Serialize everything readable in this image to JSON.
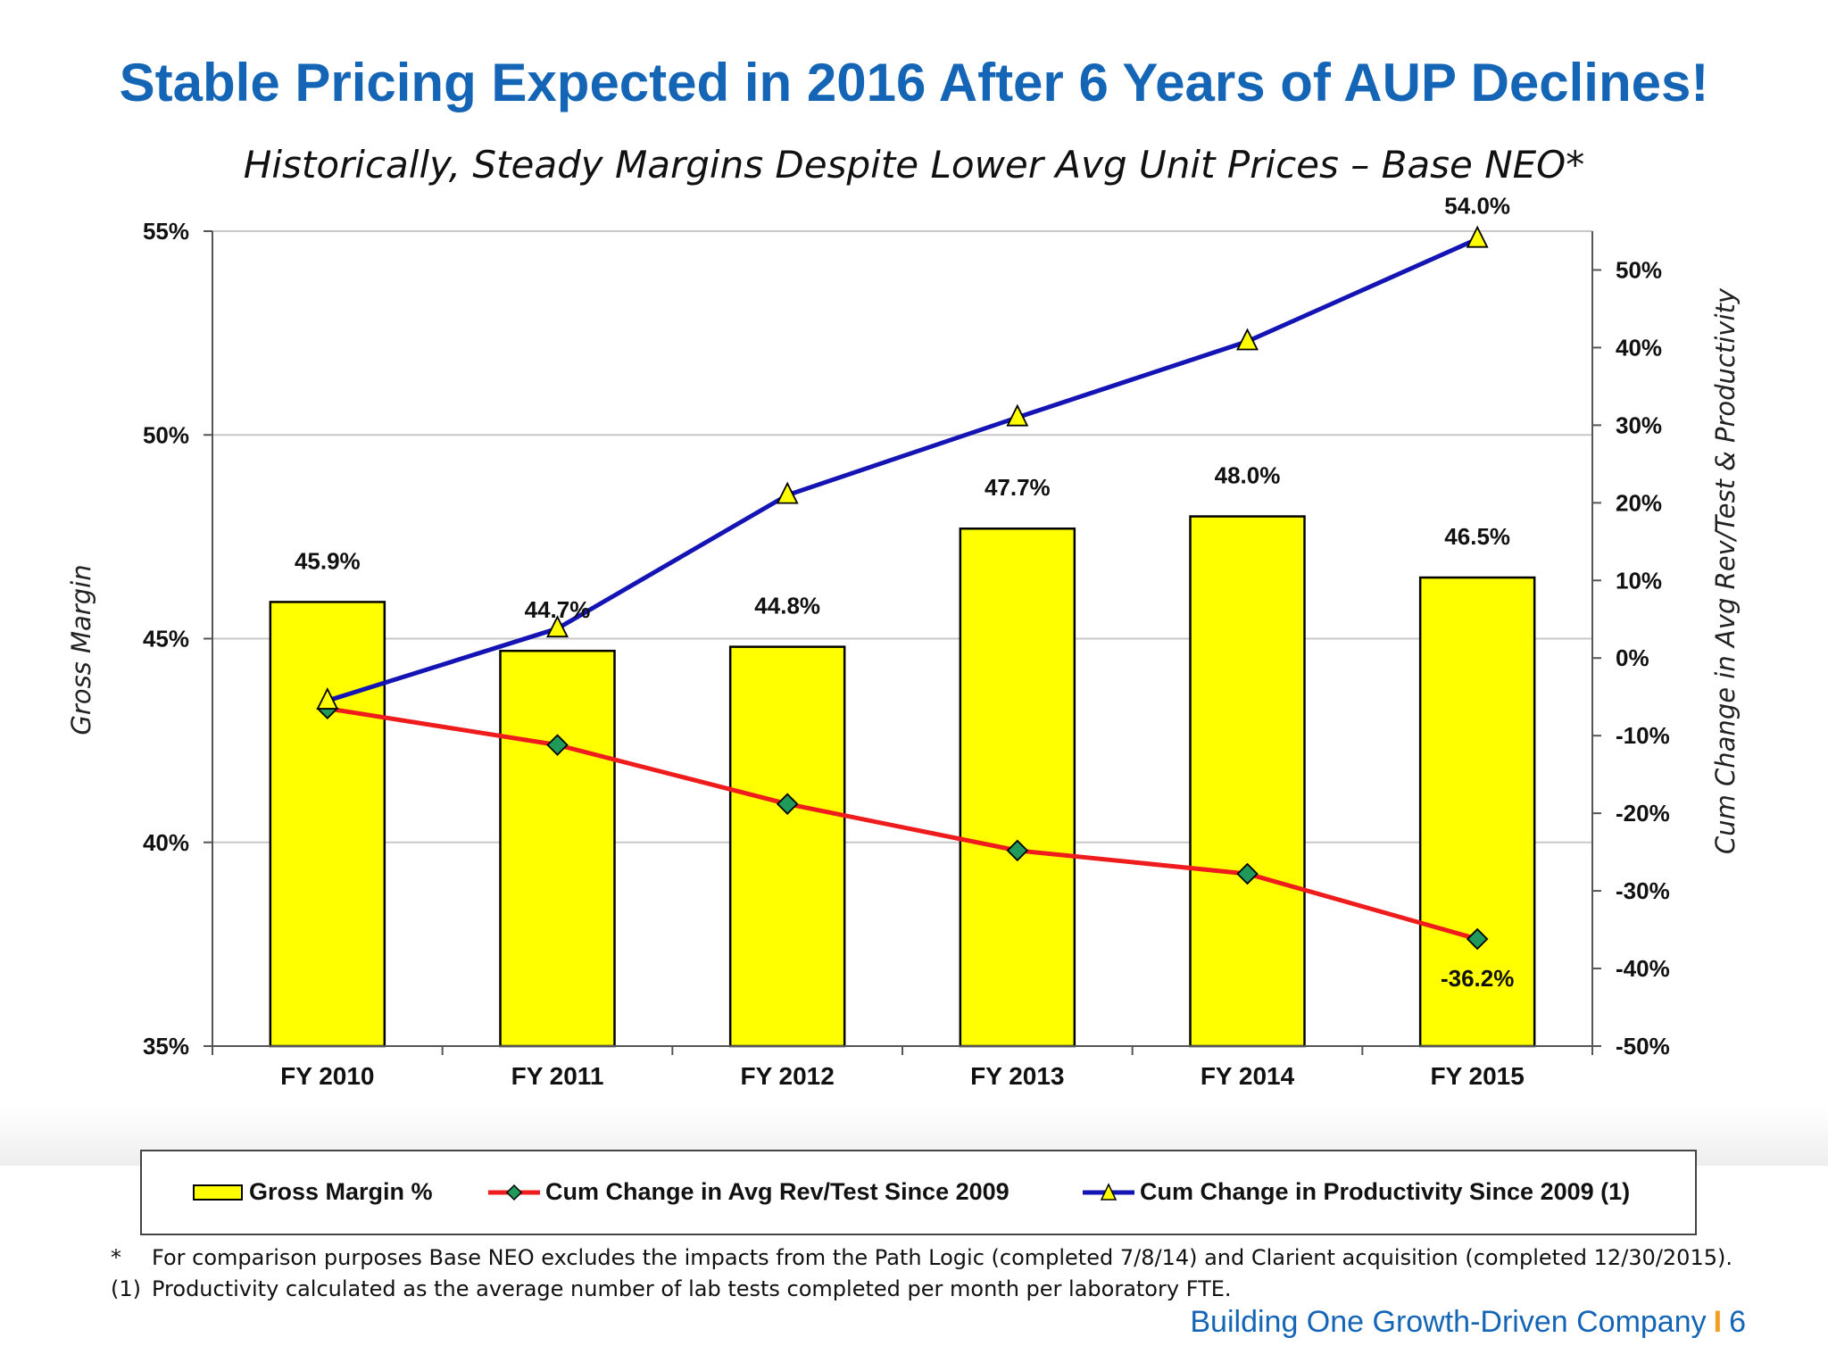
{
  "slide": {
    "title": "Stable Pricing Expected in 2016 After 6 Years of AUP Declines!",
    "subtitle": "Historically, Steady Margins Despite Lower Avg Unit Prices – Base NEO*",
    "footnotes": [
      {
        "marker": "*",
        "text": "For comparison purposes Base NEO excludes the impacts from the Path Logic (completed 7/8/14) and Clarient acquisition (completed 12/30/2015)."
      },
      {
        "marker": "(1)",
        "text": "Productivity calculated as the average number of lab tests completed per month per laboratory FTE."
      }
    ],
    "footer_text": "Building One Growth-Driven Company",
    "footer_separator": "I",
    "page_number": "6"
  },
  "colors": {
    "title": "#1565b7",
    "bar_fill": "#ffff00",
    "red_line": "#ee1c1c",
    "blue_line": "#1414b4",
    "diamond": "#1f9a5a",
    "triangle": "#ffff00"
  },
  "chart_data": {
    "type": "bar",
    "categories": [
      "FY 2010",
      "FY 2011",
      "FY 2012",
      "FY 2013",
      "FY 2014",
      "FY 2015"
    ],
    "y_left": {
      "label": "Gross Margin",
      "min": 35,
      "max": 55,
      "ticks": [
        "35%",
        "40%",
        "45%",
        "50%",
        "55%"
      ]
    },
    "y_right": {
      "label": "Cum Change in Avg Rev/Test & Productivity",
      "min": -50,
      "max": 55,
      "ticks": [
        "-50%",
        "-40%",
        "-30%",
        "-20%",
        "-10%",
        "0%",
        "10%",
        "20%",
        "30%",
        "40%",
        "50%"
      ]
    },
    "grid": true,
    "legend_position": "bottom",
    "series": [
      {
        "name": "Gross Margin %",
        "type": "bar",
        "axis": "left",
        "values": [
          45.9,
          44.7,
          44.8,
          47.7,
          48.0,
          46.5
        ],
        "labels": [
          "45.9%",
          "44.7%",
          "44.8%",
          "47.7%",
          "48.0%",
          "46.5%"
        ]
      },
      {
        "name": "Cum Change in Avg Rev/Test Since 2009",
        "type": "line",
        "axis": "right",
        "marker": "diamond",
        "values": [
          -6.5,
          -11.2,
          -18.8,
          -24.8,
          -27.8,
          -36.2
        ],
        "end_label": "-36.2%"
      },
      {
        "name": "Cum Change in Productivity Since 2009 (1)",
        "type": "line",
        "axis": "right",
        "marker": "triangle",
        "values": [
          -5.5,
          3.8,
          21,
          31,
          40.8,
          54.0
        ],
        "end_label": "54.0%"
      }
    ]
  }
}
